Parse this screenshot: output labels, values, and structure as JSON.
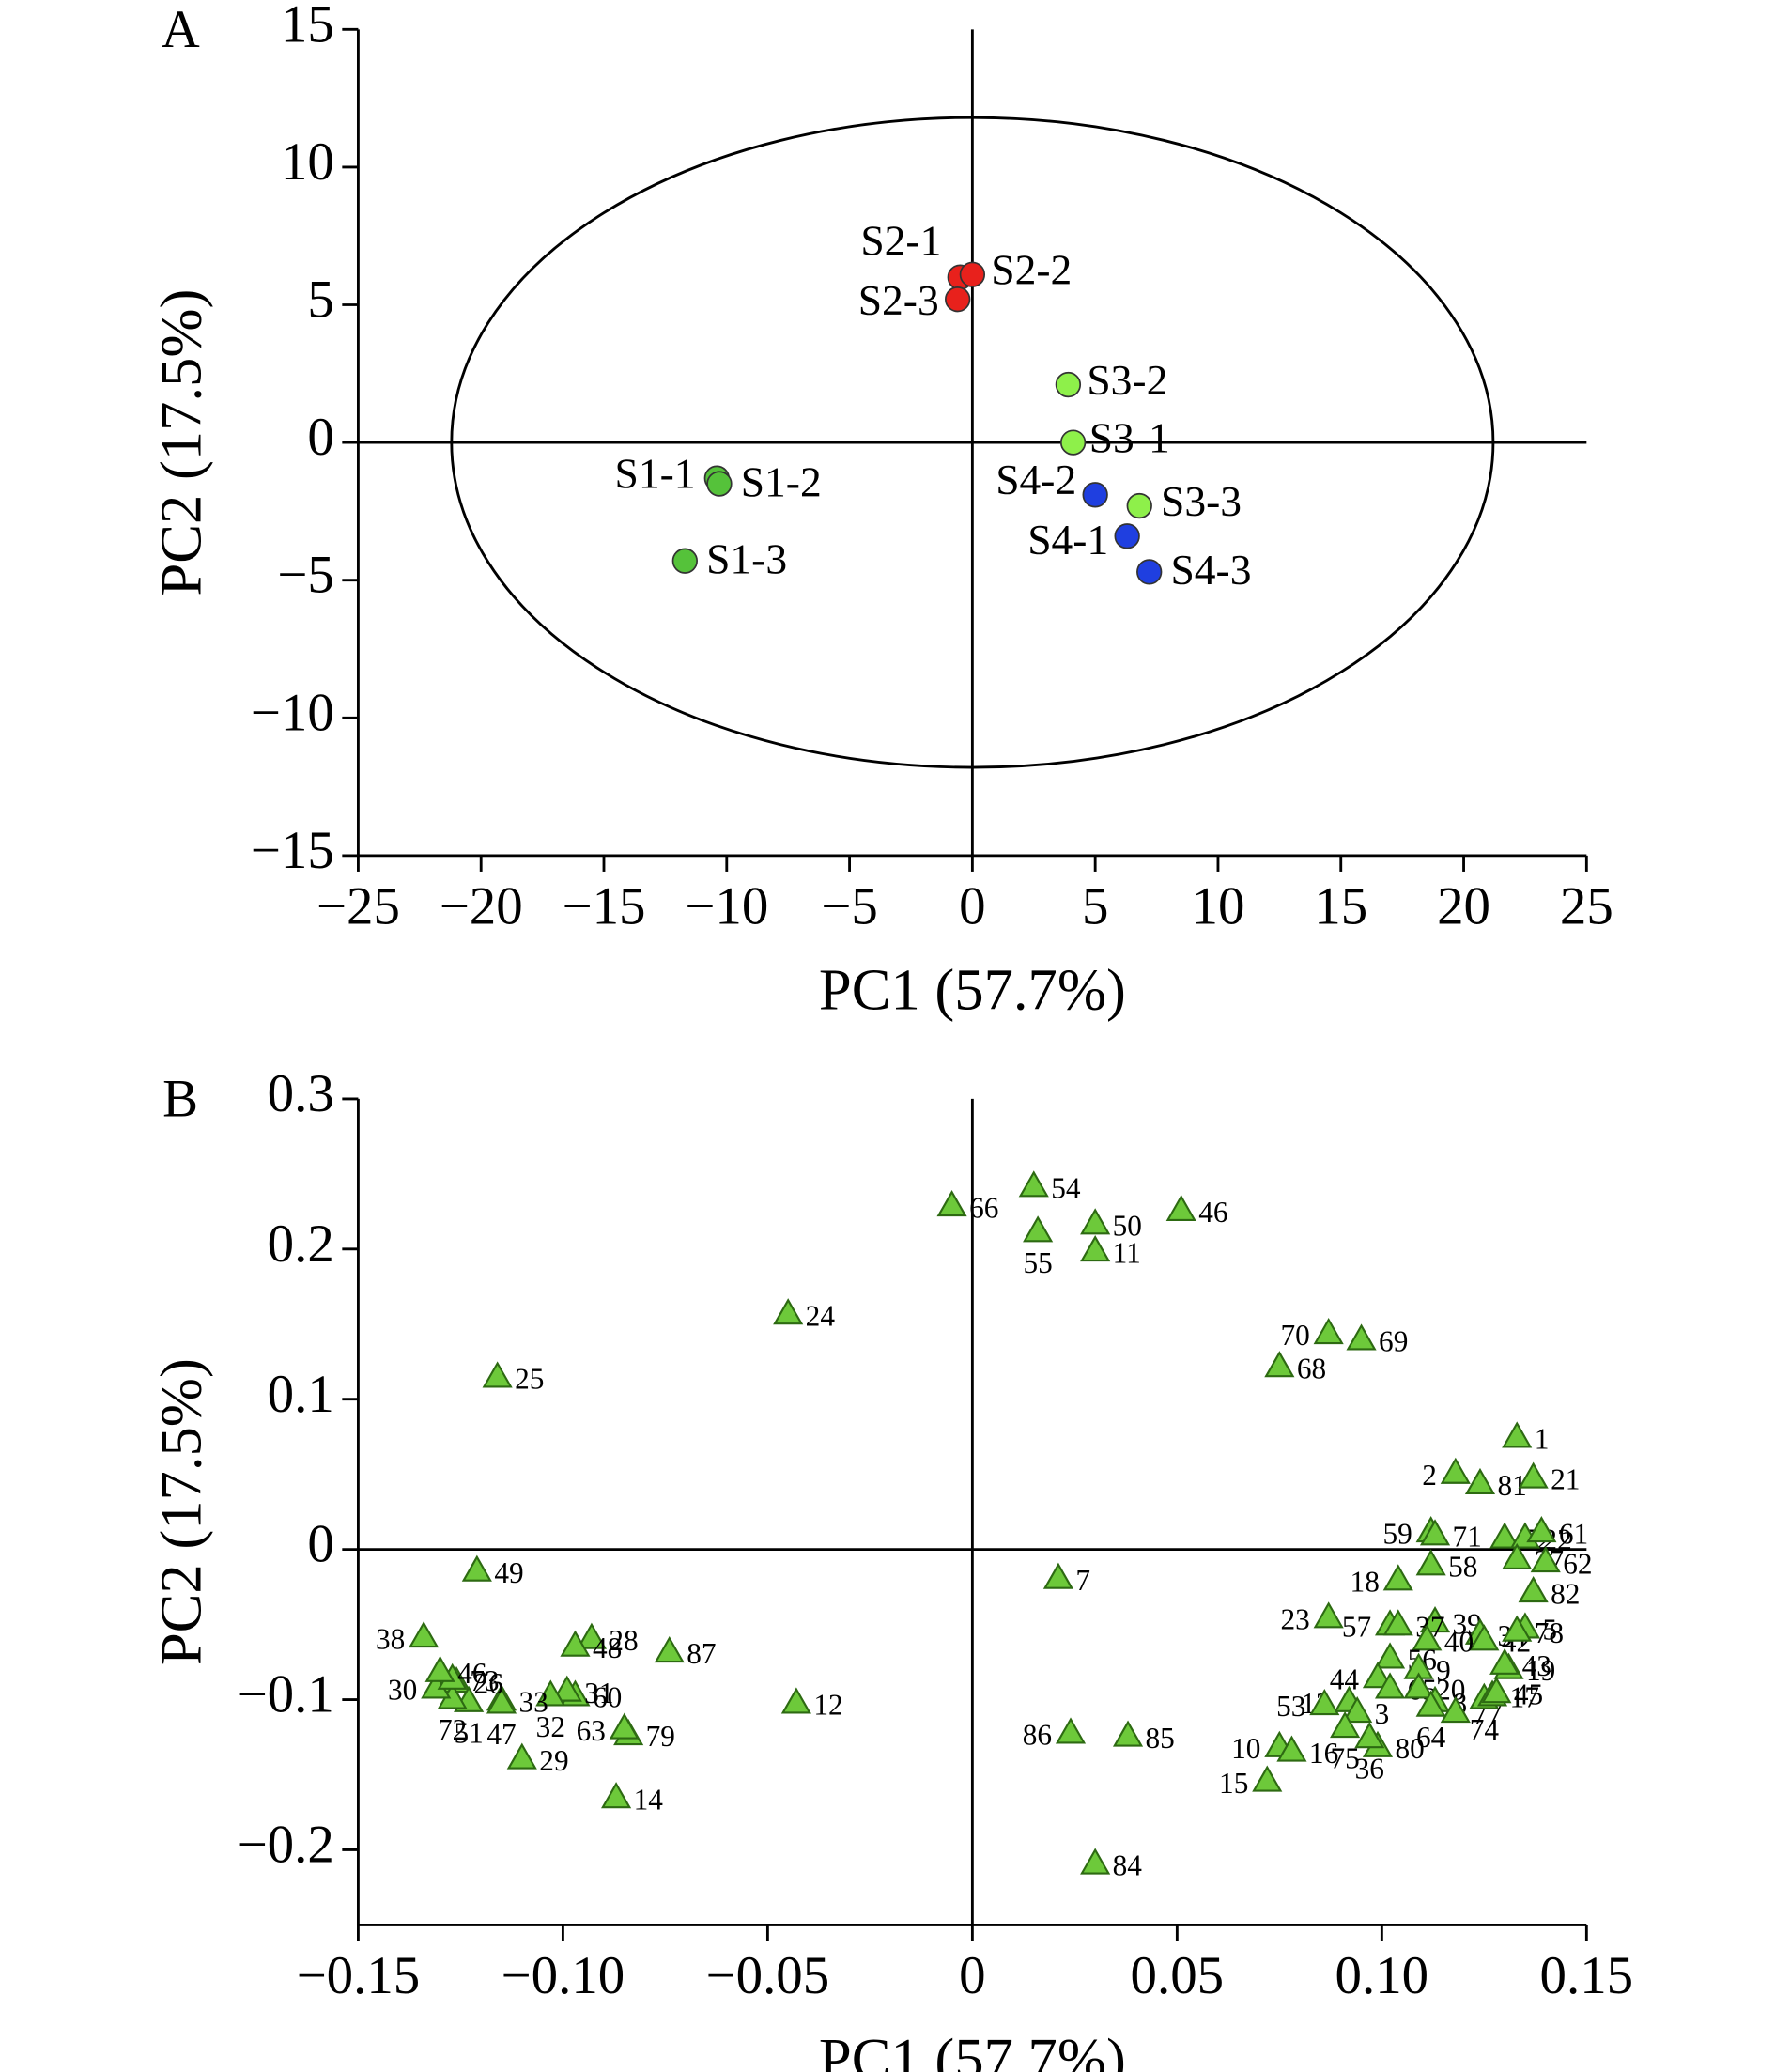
{
  "chart_data": [
    {
      "type": "scatter",
      "panel": "A",
      "marker": "circle",
      "xlabel": "PC1 (57.7%)",
      "ylabel": "PC2 (17.5%)",
      "xlim": [
        -25,
        25
      ],
      "ylim": [
        -15,
        15
      ],
      "xticks": [
        {
          "value": -25,
          "label": "−25"
        },
        {
          "value": -20,
          "label": "−20"
        },
        {
          "value": -15,
          "label": "−15"
        },
        {
          "value": -10,
          "label": "−10"
        },
        {
          "value": -5,
          "label": "−5"
        },
        0,
        5,
        10,
        15,
        20,
        25
      ],
      "yticks": [
        {
          "value": -15,
          "label": "−15"
        },
        {
          "value": -10,
          "label": "−10"
        },
        {
          "value": -5,
          "label": "−5"
        },
        0,
        5,
        10,
        15
      ],
      "zero_lines": true,
      "ellipse": {
        "rx": 21.2,
        "ry": 11.8
      },
      "series": [
        {
          "color": "#55c23a",
          "labels": [
            "S1-1",
            "S1-2",
            "S1-3"
          ],
          "x": [
            -10.4,
            -10.3,
            -11.7
          ],
          "values": [
            -1.3,
            -1.5,
            -4.3
          ]
        },
        {
          "color": "#e8211c",
          "labels": [
            "S2-1",
            "S2-2",
            "S2-3"
          ],
          "x": [
            -0.5,
            0,
            -0.6
          ],
          "values": [
            6.0,
            6.1,
            5.2
          ]
        },
        {
          "color": "#8ef04a",
          "labels": [
            "S3-1",
            "S3-2",
            "S3-3"
          ],
          "x": [
            4.1,
            3.9,
            6.8
          ],
          "values": [
            0,
            2.1,
            -2.3
          ]
        },
        {
          "color": "#1f3fe0",
          "labels": [
            "S4-1",
            "S4-2",
            "S4-3"
          ],
          "x": [
            6.3,
            5.0,
            7.2
          ],
          "values": [
            -3.4,
            -1.9,
            -4.7
          ]
        }
      ]
    },
    {
      "type": "scatter",
      "panel": "B",
      "marker": "triangle",
      "xlabel": "PC1 (57.7%)",
      "ylabel": "PC2 (17.5%)",
      "xlim": [
        -0.15,
        0.15
      ],
      "ylim": [
        -0.25,
        0.3
      ],
      "xticks": [
        {
          "value": -0.15,
          "label": "−0.15"
        },
        {
          "value": -0.1,
          "label": "−0.10"
        },
        {
          "value": -0.05,
          "label": "−0.05"
        },
        0,
        0.05,
        {
          "value": 0.1,
          "label": "0.10"
        },
        0.15
      ],
      "yticks": [
        {
          "value": -0.2,
          "label": "−0.2"
        },
        {
          "value": -0.1,
          "label": "−0.1"
        },
        0,
        0.1,
        0.2,
        0.3
      ],
      "zero_lines": true,
      "series": [
        {
          "color": "#6dc93a",
          "labels": [
            "66",
            "54",
            "55",
            "50",
            "11",
            "46",
            "24",
            "25",
            "70",
            "69",
            "68",
            "1",
            "2",
            "81",
            "21",
            "59",
            "71",
            "52",
            "22",
            "61",
            "27",
            "62",
            "18",
            "58",
            "7",
            "49",
            "82",
            "39",
            "34",
            "42",
            "5",
            "78",
            "23",
            "57",
            "37",
            "40",
            "56",
            "44",
            "9",
            "65",
            "20",
            "13",
            "3",
            "8",
            "64",
            "77",
            "74",
            "17",
            "45",
            "19",
            "43",
            "53",
            "75",
            "80",
            "36",
            "10",
            "16",
            "15",
            "86",
            "85",
            "84",
            "12",
            "14",
            "29",
            "79",
            "63",
            "87",
            "28",
            "48",
            "60",
            "31",
            "32",
            "33",
            "47",
            "26",
            "51",
            "72",
            "30",
            "73",
            "46",
            "38"
          ],
          "x": [
            -0.005,
            0.015,
            0.016,
            0.03,
            0.03,
            0.051,
            -0.045,
            -0.116,
            0.087,
            0.095,
            0.075,
            0.133,
            0.118,
            0.124,
            0.137,
            0.112,
            0.113,
            0.13,
            0.135,
            0.139,
            0.133,
            0.14,
            0.104,
            0.112,
            0.021,
            -0.121,
            0.137,
            0.113,
            0.124,
            0.125,
            0.135,
            0.133,
            0.087,
            0.102,
            0.104,
            0.111,
            0.102,
            0.099,
            0.109,
            0.102,
            0.109,
            0.092,
            0.094,
            0.113,
            0.112,
            0.118,
            0.125,
            0.127,
            0.128,
            0.131,
            0.13,
            0.086,
            0.091,
            0.099,
            0.097,
            0.075,
            0.078,
            0.072,
            0.024,
            0.038,
            0.03,
            -0.043,
            -0.087,
            -0.11,
            -0.084,
            -0.085,
            -0.074,
            -0.093,
            -0.097,
            -0.097,
            -0.099,
            -0.103,
            -0.115,
            -0.115,
            -0.126,
            -0.123,
            -0.127,
            -0.131,
            -0.127,
            -0.13,
            -0.134
          ],
          "values": [
            0.229,
            0.242,
            0.212,
            0.217,
            0.199,
            0.226,
            0.157,
            0.115,
            0.144,
            0.14,
            0.122,
            0.075,
            0.051,
            0.044,
            0.048,
            0.012,
            0.01,
            0.008,
            0.008,
            0.012,
            -0.006,
            -0.008,
            -0.02,
            -0.01,
            -0.019,
            -0.014,
            -0.028,
            -0.048,
            -0.056,
            -0.06,
            -0.052,
            -0.054,
            -0.045,
            -0.05,
            -0.05,
            -0.06,
            -0.072,
            -0.085,
            -0.079,
            -0.092,
            -0.092,
            -0.101,
            -0.108,
            -0.101,
            -0.104,
            -0.108,
            -0.099,
            -0.097,
            -0.095,
            -0.079,
            -0.076,
            -0.103,
            -0.118,
            -0.131,
            -0.125,
            -0.131,
            -0.134,
            -0.154,
            -0.122,
            -0.124,
            -0.209,
            -0.102,
            -0.165,
            -0.139,
            -0.123,
            -0.119,
            -0.068,
            -0.059,
            -0.064,
            -0.097,
            -0.094,
            -0.097,
            -0.1,
            -0.102,
            -0.088,
            -0.101,
            -0.099,
            -0.092,
            -0.086,
            -0.081,
            -0.058
          ]
        }
      ]
    }
  ]
}
